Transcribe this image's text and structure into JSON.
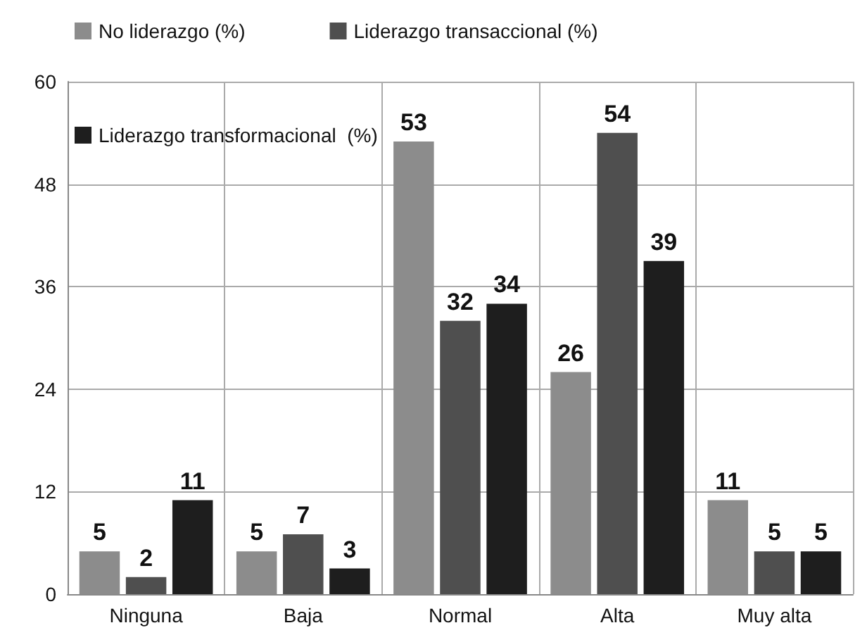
{
  "chart_data": {
    "type": "bar",
    "categories": [
      "Ninguna",
      "Baja",
      "Normal",
      "Alta",
      "Muy alta"
    ],
    "series": [
      {
        "name": "No liderazgo (%)",
        "color": "#8c8c8c",
        "values": [
          5,
          5,
          53,
          26,
          11
        ]
      },
      {
        "name": "Liderazgo transaccional (%)",
        "color": "#4f4f4f",
        "values": [
          2,
          7,
          32,
          54,
          5
        ]
      },
      {
        "name": "Liderazgo transformacional  (%)",
        "color": "#1e1e1e",
        "values": [
          11,
          3,
          34,
          39,
          5
        ]
      }
    ],
    "ylim": [
      0,
      60
    ],
    "yticks": [
      0,
      12,
      24,
      36,
      48,
      60
    ],
    "grid": true,
    "legend": "top",
    "data_labels": true
  }
}
